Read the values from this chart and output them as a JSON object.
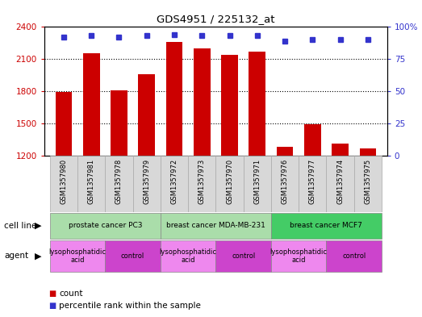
{
  "title": "GDS4951 / 225132_at",
  "samples": [
    "GSM1357980",
    "GSM1357981",
    "GSM1357978",
    "GSM1357979",
    "GSM1357972",
    "GSM1357973",
    "GSM1357970",
    "GSM1357971",
    "GSM1357976",
    "GSM1357977",
    "GSM1357974",
    "GSM1357975"
  ],
  "counts": [
    1795,
    2155,
    1810,
    1960,
    2260,
    2200,
    2140,
    2165,
    1280,
    1490,
    1310,
    1270
  ],
  "percentiles": [
    92,
    93,
    92,
    93,
    94,
    93,
    93,
    93,
    89,
    90,
    90,
    90
  ],
  "ylim_left": [
    1200,
    2400
  ],
  "ylim_right": [
    0,
    100
  ],
  "yticks_left": [
    1200,
    1500,
    1800,
    2100,
    2400
  ],
  "yticks_right": [
    0,
    25,
    50,
    75,
    100
  ],
  "ytick_right_labels": [
    "0",
    "25",
    "50",
    "75",
    "100%"
  ],
  "bar_color": "#cc0000",
  "dot_color": "#3333cc",
  "cell_line_groups": [
    {
      "label": "prostate cancer PC3",
      "start": 0,
      "end": 3,
      "color": "#aaddaa"
    },
    {
      "label": "breast cancer MDA-MB-231",
      "start": 4,
      "end": 7,
      "color": "#aaddaa"
    },
    {
      "label": "breast cancer MCF7",
      "start": 8,
      "end": 11,
      "color": "#44cc66"
    }
  ],
  "agent_groups": [
    {
      "label": "lysophosphatidic\nacid",
      "start": 0,
      "end": 1,
      "color": "#ee88ee"
    },
    {
      "label": "control",
      "start": 2,
      "end": 3,
      "color": "#cc44cc"
    },
    {
      "label": "lysophosphatidic\nacid",
      "start": 4,
      "end": 5,
      "color": "#ee88ee"
    },
    {
      "label": "control",
      "start": 6,
      "end": 7,
      "color": "#cc44cc"
    },
    {
      "label": "lysophosphatidic\nacid",
      "start": 8,
      "end": 9,
      "color": "#ee88ee"
    },
    {
      "label": "control",
      "start": 10,
      "end": 11,
      "color": "#cc44cc"
    }
  ],
  "legend_count_label": "count",
  "legend_percentile_label": "percentile rank within the sample",
  "cell_line_row_label": "cell line",
  "agent_row_label": "agent",
  "background_color": "#ffffff",
  "plot_bg_color": "#ffffff",
  "axis_color_left": "#cc0000",
  "axis_color_right": "#3333cc",
  "xlabel_bg_color": "#d8d8d8",
  "xlabel_border_color": "#aaaaaa"
}
